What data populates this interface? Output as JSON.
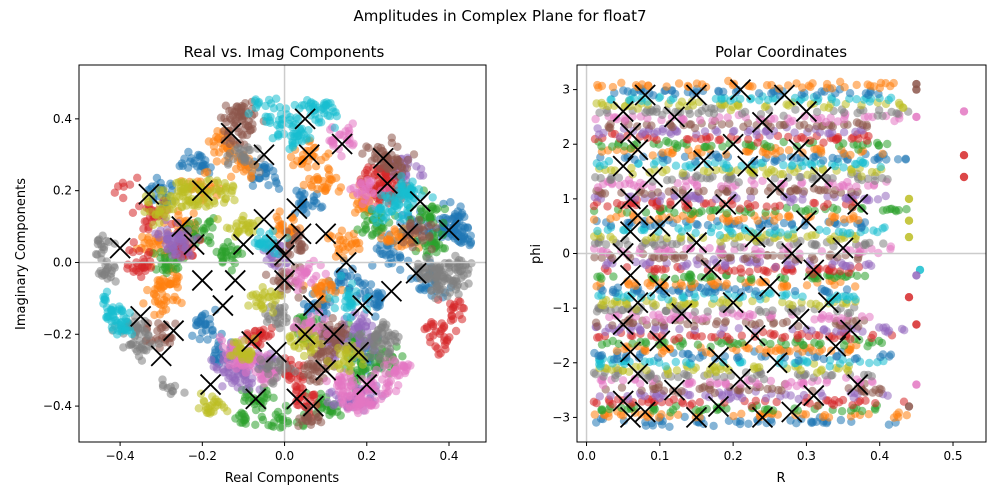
{
  "figure": {
    "suptitle": "Amplitudes in Complex Plane for float7"
  },
  "palette": [
    "#1f77b4",
    "#ff7f0e",
    "#2ca02c",
    "#d62728",
    "#9467bd",
    "#8c564b",
    "#e377c2",
    "#7f7f7f",
    "#bcbd22",
    "#17becf"
  ],
  "chart_data": [
    {
      "type": "scatter",
      "title": "Real vs. Imag Components",
      "xlabel": "Real Components",
      "ylabel": "Imaginary Components",
      "xlim": [
        -0.5,
        0.49
      ],
      "ylim": [
        -0.5,
        0.55
      ],
      "xticks": [
        -0.4,
        -0.2,
        0.0,
        0.2,
        0.4
      ],
      "yticks": [
        -0.4,
        -0.2,
        0.0,
        0.2,
        0.4
      ],
      "xtick_labels": [
        "−0.4",
        "−0.2",
        "0.0",
        "0.2",
        "0.4"
      ],
      "ytick_labels": [
        "−0.4",
        "−0.2",
        "0.0",
        "0.2",
        "0.4"
      ],
      "reference_lines": {
        "x": 0,
        "y": 0
      },
      "grid": false,
      "legend": "none",
      "series": [
        {
          "color": "#1f77b4",
          "points": [
            [
              0.39,
              0.09
            ],
            [
              0.41,
              0.12
            ],
            [
              0.35,
              -0.05
            ],
            [
              0.22,
              -0.1
            ],
            [
              0.15,
              -0.05
            ],
            [
              0.08,
              -0.12
            ],
            [
              -0.15,
              -0.25
            ],
            [
              -0.2,
              -0.18
            ],
            [
              -0.22,
              0.27
            ],
            [
              -0.3,
              0.2
            ],
            [
              0.05,
              0.17
            ],
            [
              0.25,
              0.03
            ],
            [
              0.32,
              0.1
            ],
            [
              -0.05,
              0.25
            ],
            [
              0.43,
              0.08
            ],
            [
              0.2,
              -0.26
            ]
          ]
        },
        {
          "color": "#ff7f0e",
          "points": [
            [
              -0.15,
              0.33
            ],
            [
              -0.1,
              0.28
            ],
            [
              -0.25,
              0.1
            ],
            [
              -0.28,
              -0.05
            ],
            [
              -0.3,
              -0.1
            ],
            [
              0.07,
              0.3
            ],
            [
              0.1,
              0.22
            ],
            [
              0.19,
              0.16
            ],
            [
              -0.2,
              0.2
            ],
            [
              0.1,
              -0.08
            ],
            [
              -0.32,
              0.05
            ],
            [
              0.28,
              0.07
            ],
            [
              0.0,
              0.1
            ],
            [
              0.15,
              0.05
            ]
          ]
        },
        {
          "color": "#2ca02c",
          "points": [
            [
              0.35,
              0.14
            ],
            [
              0.36,
              0.05
            ],
            [
              -0.2,
              0.09
            ],
            [
              0.17,
              -0.22
            ],
            [
              0.25,
              -0.27
            ],
            [
              -0.13,
              0.02
            ],
            [
              0.05,
              -0.18
            ],
            [
              -0.07,
              -0.38
            ],
            [
              -0.1,
              -0.44
            ],
            [
              0.0,
              -0.45
            ],
            [
              0.22,
              0.1
            ],
            [
              0.18,
              -0.3
            ],
            [
              0.1,
              -0.4
            ],
            [
              -0.28,
              0.0
            ]
          ]
        },
        {
          "color": "#d62728",
          "points": [
            [
              0.22,
              0.22
            ],
            [
              0.25,
              0.25
            ],
            [
              -0.25,
              0.04
            ],
            [
              -0.32,
              0.13
            ],
            [
              -0.35,
              0.0
            ],
            [
              0.38,
              -0.2
            ],
            [
              0.4,
              -0.25
            ],
            [
              0.02,
              -0.3
            ],
            [
              0.05,
              -0.38
            ],
            [
              -0.06,
              -0.21
            ],
            [
              -0.4,
              0.23
            ],
            [
              0.26,
              0.2
            ],
            [
              0.43,
              -0.13
            ],
            [
              -0.42,
              0.27
            ]
          ]
        },
        {
          "color": "#9467bd",
          "points": [
            [
              -0.13,
              -0.3
            ],
            [
              -0.1,
              -0.33
            ],
            [
              -0.25,
              0.05
            ],
            [
              -0.28,
              0.08
            ],
            [
              0.12,
              -0.22
            ],
            [
              0.18,
              -0.18
            ],
            [
              -0.02,
              0.02
            ],
            [
              0.2,
              -0.36
            ],
            [
              0.15,
              -0.38
            ],
            [
              0.18,
              -0.22
            ],
            [
              -0.05,
              -0.28
            ],
            [
              0.3,
              0.26
            ]
          ]
        },
        {
          "color": "#8c564b",
          "points": [
            [
              0.27,
              0.27
            ],
            [
              0.24,
              0.3
            ],
            [
              0.33,
              0.08
            ],
            [
              0.1,
              -0.25
            ],
            [
              0.12,
              -0.2
            ],
            [
              -0.12,
              0.37
            ],
            [
              -0.1,
              0.4
            ],
            [
              0.03,
              0.05
            ],
            [
              0.0,
              -0.05
            ],
            [
              -0.3,
              -0.2
            ],
            [
              0.08,
              -0.3
            ],
            [
              0.06,
              -0.44
            ],
            [
              -0.12,
              0.45
            ],
            [
              -0.15,
              0.5
            ]
          ]
        },
        {
          "color": "#e377c2",
          "points": [
            [
              -0.1,
              -0.27
            ],
            [
              -0.12,
              -0.24
            ],
            [
              0.06,
              -0.18
            ],
            [
              0.2,
              0.2
            ],
            [
              0.15,
              0.35
            ],
            [
              0.05,
              -0.03
            ],
            [
              0.15,
              -0.34
            ],
            [
              0.18,
              -0.4
            ],
            [
              0.17,
              -0.38
            ],
            [
              -0.05,
              -0.3
            ],
            [
              0.24,
              -0.34
            ],
            [
              0.28,
              -0.3
            ]
          ]
        },
        {
          "color": "#7f7f7f",
          "points": [
            [
              0.35,
              -0.02
            ],
            [
              0.37,
              -0.05
            ],
            [
              -0.02,
              -0.15
            ],
            [
              0.24,
              -0.23
            ],
            [
              0.23,
              -0.2
            ],
            [
              -0.1,
              0.3
            ],
            [
              -0.45,
              0.05
            ],
            [
              -0.44,
              -0.02
            ],
            [
              -0.35,
              -0.23
            ],
            [
              -0.37,
              -0.18
            ],
            [
              0.4,
              -0.05
            ],
            [
              0.42,
              -0.02
            ],
            [
              -0.02,
              -0.3
            ],
            [
              -0.28,
              -0.38
            ]
          ]
        },
        {
          "color": "#bcbd22",
          "points": [
            [
              -0.25,
              0.2
            ],
            [
              -0.22,
              0.18
            ],
            [
              -0.15,
              0.2
            ],
            [
              -0.1,
              -0.25
            ],
            [
              -0.05,
              -0.1
            ],
            [
              0.05,
              -0.22
            ],
            [
              0.15,
              -0.26
            ],
            [
              -0.3,
              0.15
            ],
            [
              -0.17,
              -0.4
            ],
            [
              -0.1,
              0.1
            ]
          ]
        },
        {
          "color": "#17becf",
          "points": [
            [
              0.03,
              0.35
            ],
            [
              0.0,
              0.4
            ],
            [
              0.25,
              0.15
            ],
            [
              0.29,
              0.18
            ],
            [
              -0.05,
              0.05
            ],
            [
              0.15,
              -0.1
            ],
            [
              -0.4,
              -0.18
            ],
            [
              -0.45,
              -0.11
            ],
            [
              0.1,
              0.42
            ],
            [
              0.07,
              0.45
            ],
            [
              -0.05,
              0.45
            ],
            [
              0.3,
              0.2
            ],
            [
              0.08,
              0.5
            ],
            [
              -0.42,
              -0.15
            ]
          ]
        }
      ],
      "centroids": [
        [
          -0.4,
          0.04
        ],
        [
          -0.33,
          0.19
        ],
        [
          -0.3,
          -0.26
        ],
        [
          -0.35,
          -0.15
        ],
        [
          -0.27,
          -0.19
        ],
        [
          -0.2,
          0.2
        ],
        [
          -0.18,
          -0.34
        ],
        [
          -0.13,
          0.36
        ],
        [
          -0.05,
          0.3
        ],
        [
          -0.07,
          -0.38
        ],
        [
          0.05,
          0.4
        ],
        [
          0.06,
          0.3
        ],
        [
          0.14,
          0.33
        ],
        [
          0.24,
          0.29
        ],
        [
          0.25,
          0.22
        ],
        [
          0.33,
          0.17
        ],
        [
          0.4,
          0.09
        ],
        [
          0.3,
          0.08
        ],
        [
          0.32,
          -0.03
        ],
        [
          0.26,
          -0.08
        ],
        [
          0.19,
          -0.12
        ],
        [
          0.1,
          -0.3
        ],
        [
          0.07,
          -0.4
        ],
        [
          0.03,
          -0.38
        ],
        [
          0.18,
          -0.25
        ],
        [
          0.2,
          -0.34
        ],
        [
          0.07,
          -0.12
        ],
        [
          0.0,
          -0.05
        ],
        [
          -0.02,
          0.05
        ],
        [
          -0.05,
          0.12
        ],
        [
          -0.1,
          0.05
        ],
        [
          -0.12,
          -0.05
        ],
        [
          -0.15,
          -0.12
        ],
        [
          -0.2,
          -0.05
        ],
        [
          -0.22,
          0.05
        ],
        [
          0.03,
          0.15
        ],
        [
          0.1,
          0.08
        ],
        [
          0.15,
          0.0
        ],
        [
          0.05,
          -0.2
        ],
        [
          -0.02,
          -0.25
        ],
        [
          -0.08,
          -0.22
        ],
        [
          0.12,
          -0.2
        ],
        [
          -0.25,
          0.1
        ],
        [
          0.0,
          0.02
        ],
        [
          0.04,
          0.08
        ]
      ]
    },
    {
      "type": "scatter",
      "title": "Polar Coordinates",
      "xlabel": "R",
      "ylabel": "phi",
      "xlim": [
        -0.013,
        0.545
      ],
      "ylim": [
        -3.45,
        3.45
      ],
      "xticks": [
        0.0,
        0.1,
        0.2,
        0.3,
        0.4,
        0.5
      ],
      "yticks": [
        -3,
        -2,
        -1,
        0,
        1,
        2,
        3
      ],
      "xtick_labels": [
        "0.0",
        "0.1",
        "0.2",
        "0.3",
        "0.4",
        "0.5"
      ],
      "ytick_labels": [
        "−3",
        "−2",
        "−1",
        "0",
        "1",
        "2",
        "3"
      ],
      "reference_lines": {
        "x": 0,
        "y": 0
      },
      "grid": false,
      "legend": "none",
      "band_phi_range": [
        -3.14,
        3.14
      ],
      "band_r_range": [
        0.01,
        0.44
      ],
      "outliers": [
        [
          0.515,
          1.8,
          "#d62728"
        ],
        [
          0.515,
          1.4,
          "#d62728"
        ],
        [
          0.515,
          2.6,
          "#e377c2"
        ],
        [
          0.455,
          -0.3,
          "#17becf"
        ],
        [
          0.45,
          3.1,
          "#8c564b"
        ],
        [
          0.45,
          2.5,
          "#e377c2"
        ],
        [
          0.45,
          -2.4,
          "#e377c2"
        ],
        [
          0.45,
          -1.3,
          "#d62728"
        ],
        [
          0.45,
          -0.4,
          "#9467bd"
        ],
        [
          0.45,
          3.0,
          "#8c564b"
        ],
        [
          0.44,
          0.6,
          "#bcbd22"
        ],
        [
          0.44,
          0.3,
          "#bcbd22"
        ],
        [
          0.44,
          1.0,
          "#bcbd22"
        ],
        [
          0.44,
          -0.8,
          "#d62728"
        ],
        [
          0.44,
          -2.8,
          "#8c564b"
        ]
      ],
      "centroids": [
        [
          0.05,
          2.6
        ],
        [
          0.06,
          2.2
        ],
        [
          0.07,
          1.9
        ],
        [
          0.05,
          1.6
        ],
        [
          0.06,
          1.0
        ],
        [
          0.07,
          0.7
        ],
        [
          0.06,
          0.4
        ],
        [
          0.05,
          0.0
        ],
        [
          0.06,
          -0.4
        ],
        [
          0.07,
          -0.9
        ],
        [
          0.05,
          -1.3
        ],
        [
          0.06,
          -1.8
        ],
        [
          0.07,
          -2.2
        ],
        [
          0.05,
          -2.7
        ],
        [
          0.06,
          -3.0
        ],
        [
          0.08,
          2.9
        ],
        [
          0.08,
          -2.9
        ],
        [
          0.09,
          1.4
        ],
        [
          0.1,
          0.5
        ],
        [
          0.1,
          -0.6
        ],
        [
          0.1,
          -1.6
        ],
        [
          0.12,
          2.5
        ],
        [
          0.12,
          -2.5
        ],
        [
          0.13,
          1.0
        ],
        [
          0.13,
          -1.1
        ],
        [
          0.15,
          2.9
        ],
        [
          0.15,
          0.2
        ],
        [
          0.15,
          -3.0
        ],
        [
          0.16,
          1.7
        ],
        [
          0.17,
          -0.3
        ],
        [
          0.18,
          -1.9
        ],
        [
          0.18,
          -2.8
        ],
        [
          0.19,
          0.9
        ],
        [
          0.2,
          2.0
        ],
        [
          0.2,
          -0.9
        ],
        [
          0.21,
          3.0
        ],
        [
          0.21,
          -2.3
        ],
        [
          0.22,
          1.6
        ],
        [
          0.23,
          0.3
        ],
        [
          0.23,
          -1.5
        ],
        [
          0.24,
          2.4
        ],
        [
          0.24,
          -3.0
        ],
        [
          0.25,
          -0.6
        ],
        [
          0.26,
          1.2
        ],
        [
          0.26,
          -2.0
        ],
        [
          0.27,
          2.9
        ],
        [
          0.28,
          0.0
        ],
        [
          0.28,
          -2.9
        ],
        [
          0.29,
          1.9
        ],
        [
          0.29,
          -1.2
        ],
        [
          0.3,
          2.6
        ],
        [
          0.3,
          0.6
        ],
        [
          0.31,
          -0.3
        ],
        [
          0.31,
          -2.6
        ],
        [
          0.32,
          1.4
        ],
        [
          0.33,
          -0.9
        ],
        [
          0.34,
          -1.7
        ],
        [
          0.35,
          0.1
        ],
        [
          0.36,
          -1.4
        ],
        [
          0.37,
          0.9
        ],
        [
          0.37,
          -2.4
        ]
      ]
    }
  ]
}
